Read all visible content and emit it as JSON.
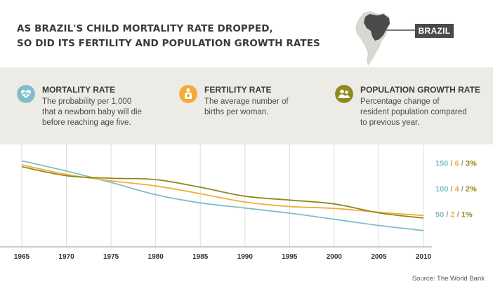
{
  "title_lines": [
    "AS BRAZIL'S CHILD MORTALITY RATE DROPPED,",
    "SO DID ITS FERTILITY AND POPULATION GROWTH RATES"
  ],
  "country_label": "BRAZIL",
  "legend": [
    {
      "title": "MORTALITY RATE",
      "desc": "The probability per 1,000\nthat a newborn baby will die\nbefore reaching age five.",
      "color": "#7fbec8",
      "icon": "heartbeat-icon"
    },
    {
      "title": "FERTILITY RATE",
      "desc": "The average number of\nbirths per woman.",
      "color": "#f0ad38",
      "icon": "mother-child-icon"
    },
    {
      "title": "POPULATION GROWTH RATE",
      "desc": "Percentage change of\nresident population compared\nto previous year.",
      "color": "#8f8a1e",
      "icon": "people-icon"
    }
  ],
  "source": "Source: The World Bank",
  "chart_data": {
    "type": "line",
    "x": [
      1965,
      1970,
      1975,
      1980,
      1985,
      1990,
      1995,
      2000,
      2005,
      2010
    ],
    "xlim": [
      1965,
      2010
    ],
    "x_ticks": [
      "1965",
      "1970",
      "1975",
      "1980",
      "1985",
      "1990",
      "1995",
      "2000",
      "2005",
      "2010"
    ],
    "y_axes": [
      {
        "name": "Mortality",
        "unit": "",
        "ticks": [
          "150",
          "100",
          "50"
        ],
        "ylim": [
          0,
          175
        ],
        "color": "#7fbec8"
      },
      {
        "name": "Fertility",
        "unit": "",
        "ticks": [
          "6",
          "4",
          "2"
        ],
        "ylim": [
          0,
          7
        ],
        "color": "#f0ad38"
      },
      {
        "name": "Population growth",
        "unit": "%",
        "ticks": [
          "3%",
          "2%",
          "1%"
        ],
        "ylim": [
          0,
          3.5
        ],
        "color": "#8f8a1e"
      }
    ],
    "tick_separator": " / ",
    "series": [
      {
        "name": "Mortality rate",
        "axis": 0,
        "color": "#7fbec8",
        "values": [
          154,
          134,
          112,
          88,
          72,
          62,
          52,
          40,
          28,
          18
        ]
      },
      {
        "name": "Fertility rate",
        "axis": 1,
        "color": "#f0ad38",
        "values": [
          5.85,
          5.1,
          4.6,
          4.2,
          3.6,
          2.95,
          2.6,
          2.45,
          2.15,
          1.9
        ]
      },
      {
        "name": "Population growth rate",
        "axis": 2,
        "color": "#8f8a1e",
        "values": [
          2.85,
          2.5,
          2.4,
          2.35,
          2.05,
          1.7,
          1.55,
          1.4,
          1.05,
          0.85
        ]
      }
    ]
  }
}
